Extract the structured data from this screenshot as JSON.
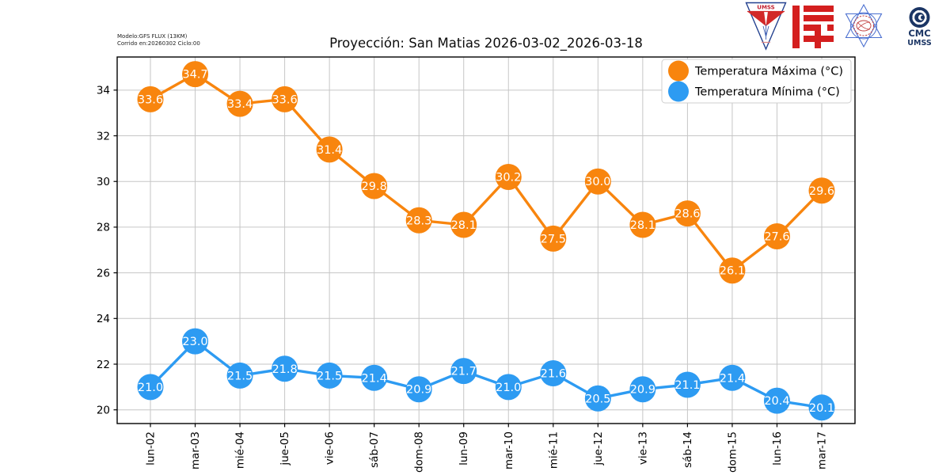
{
  "header": {
    "model_line1": "Modelo:GFS FLUX (13KM)",
    "model_line2": "Corrido en:20260302 Ciclo:00"
  },
  "logos": {
    "umss_pennant_text": "UMSS",
    "cmc_text_line1": "CMC",
    "cmc_text_line2": "UMSS"
  },
  "chart_data": {
    "type": "line",
    "title": "Proyección: San Matias 2026-03-02_2026-03-18",
    "categories": [
      "lun-02",
      "mar-03",
      "mié-04",
      "jue-05",
      "vie-06",
      "sáb-07",
      "dom-08",
      "lun-09",
      "mar-10",
      "mié-11",
      "jue-12",
      "vie-13",
      "sáb-14",
      "dom-15",
      "lun-16",
      "mar-17"
    ],
    "series": [
      {
        "name": "Temperatura Máxima  (°C)",
        "color": "#F8850E",
        "values": [
          33.6,
          34.7,
          33.4,
          33.6,
          31.4,
          29.8,
          28.3,
          28.1,
          30.2,
          27.5,
          30.0,
          28.1,
          28.6,
          26.1,
          27.6,
          29.6
        ]
      },
      {
        "name": "Temperatura Mínima  (°C)",
        "color": "#2D9BF2",
        "values": [
          21.0,
          23.0,
          21.5,
          21.8,
          21.5,
          21.4,
          20.9,
          21.7,
          21.0,
          21.6,
          20.5,
          20.9,
          21.1,
          21.4,
          20.4,
          20.1
        ]
      }
    ],
    "xlabel": "",
    "ylabel": "",
    "ylim": [
      19.4,
      35.45
    ],
    "yticks": [
      20,
      22,
      24,
      26,
      28,
      30,
      32,
      34
    ],
    "grid": true,
    "legend_position": "upper right"
  }
}
